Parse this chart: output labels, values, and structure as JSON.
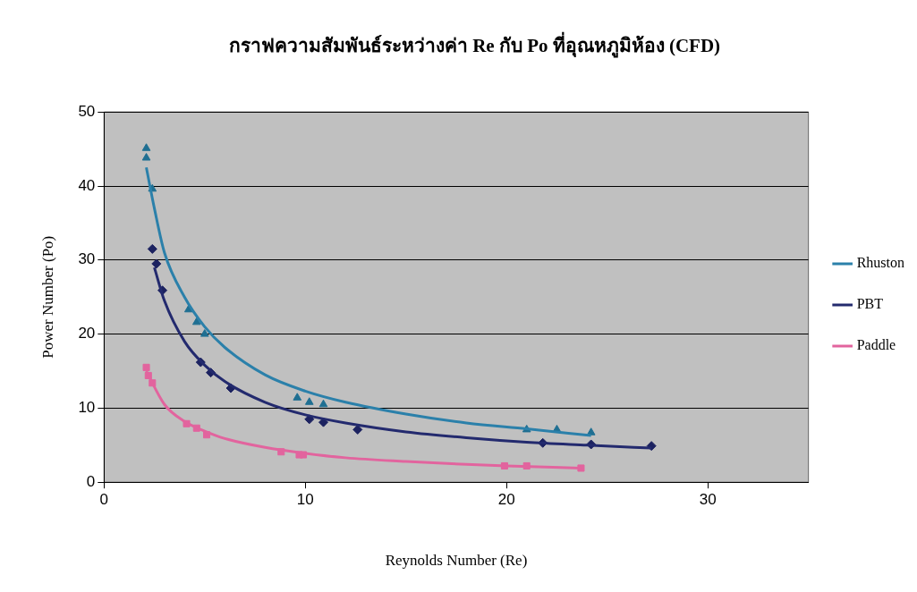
{
  "chart_data": {
    "type": "scatter",
    "title": "กราฟความสัมพันธ์ระหว่างค่า Re กับ Po ที่อุณหภูมิห้อง (CFD)",
    "xlabel": "Reynolds Number (Re)",
    "ylabel": "Power Number (Po)",
    "xlim": [
      0,
      35
    ],
    "ylim": [
      0,
      50
    ],
    "xticks": [
      0,
      10,
      20,
      30
    ],
    "yticks": [
      0,
      10,
      20,
      30,
      40,
      50
    ],
    "grid": "y",
    "legend": "right",
    "series": [
      {
        "name": "Rhuston",
        "type": "line",
        "marker": "none",
        "color": "#2b80aa",
        "x": [
          2.1,
          2.5,
          3,
          4,
          5,
          6,
          8,
          10,
          12,
          15,
          18,
          21,
          24.2
        ],
        "values": [
          42.5,
          37,
          31,
          25,
          21,
          18.2,
          14.5,
          12.3,
          10.8,
          9.2,
          8,
          7.2,
          6.3
        ]
      },
      {
        "name": "PBT",
        "type": "line",
        "marker": "none",
        "color": "#232a6e",
        "x": [
          2.5,
          3,
          4,
          5,
          6,
          8,
          10,
          12,
          15,
          18,
          21,
          24,
          27.2
        ],
        "values": [
          29,
          24.5,
          19,
          15.8,
          13.6,
          10.8,
          9.1,
          8,
          6.8,
          6,
          5.4,
          5,
          4.6
        ]
      },
      {
        "name": "Paddle",
        "type": "line",
        "marker": "none",
        "color": "#e2649e",
        "x": [
          2.1,
          3,
          4,
          5,
          6,
          8,
          10,
          12,
          15,
          18,
          20,
          23.7
        ],
        "values": [
          15,
          10.5,
          8.2,
          6.9,
          5.9,
          4.7,
          3.9,
          3.3,
          2.8,
          2.4,
          2.2,
          1.9
        ]
      },
      {
        "marker": "triangle",
        "color": "#1f6f92",
        "x": [
          2.1,
          2.1,
          2.4,
          4.2,
          4.6,
          5,
          9.6,
          10.2,
          10.9,
          21,
          22.5,
          24.2
        ],
        "values": [
          45.1,
          43.8,
          39.6,
          23.3,
          21.6,
          20,
          11.4,
          10.8,
          10.5,
          7.1,
          7.1,
          6.7
        ]
      },
      {
        "marker": "diamond",
        "color": "#1c2260",
        "x": [
          2.4,
          2.6,
          2.9,
          4.8,
          5.3,
          6.3,
          10.2,
          10.9,
          12.6,
          21.8,
          24.2,
          27.2
        ],
        "values": [
          31.5,
          29.5,
          25.9,
          16.2,
          14.8,
          12.7,
          8.5,
          8.1,
          7.1,
          5.3,
          5.1,
          4.9
        ]
      },
      {
        "marker": "square",
        "color": "#e2649e",
        "x": [
          2.1,
          2.2,
          2.4,
          4.1,
          4.6,
          5.1,
          8.8,
          9.7,
          9.9,
          19.9,
          21,
          23.7
        ],
        "values": [
          15.5,
          14.4,
          13.4,
          7.9,
          7.3,
          6.4,
          4.1,
          3.7,
          3.7,
          2.2,
          2.2,
          1.9
        ]
      }
    ]
  }
}
